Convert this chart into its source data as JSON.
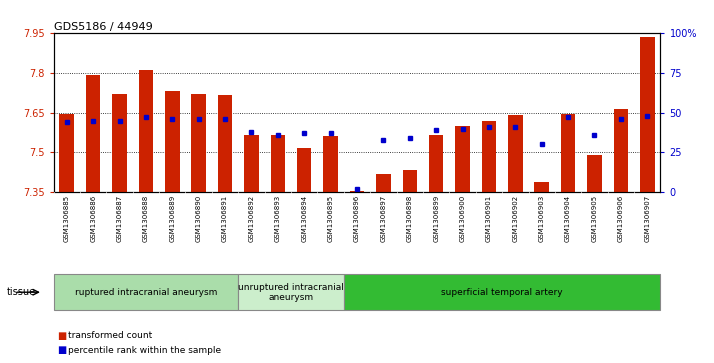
{
  "title": "GDS5186 / 44949",
  "samples": [
    "GSM1306885",
    "GSM1306886",
    "GSM1306887",
    "GSM1306888",
    "GSM1306889",
    "GSM1306890",
    "GSM1306891",
    "GSM1306892",
    "GSM1306893",
    "GSM1306894",
    "GSM1306895",
    "GSM1306896",
    "GSM1306897",
    "GSM1306898",
    "GSM1306899",
    "GSM1306900",
    "GSM1306901",
    "GSM1306902",
    "GSM1306903",
    "GSM1306904",
    "GSM1306905",
    "GSM1306906",
    "GSM1306907"
  ],
  "bar_values": [
    7.645,
    7.79,
    7.72,
    7.81,
    7.73,
    7.72,
    7.715,
    7.565,
    7.565,
    7.515,
    7.56,
    7.355,
    7.42,
    7.435,
    7.565,
    7.6,
    7.62,
    7.64,
    7.39,
    7.645,
    7.49,
    7.665,
    7.935
  ],
  "percentile_values": [
    44,
    45,
    45,
    47,
    46,
    46,
    46,
    38,
    36,
    37,
    37,
    2,
    33,
    34,
    39,
    40,
    41,
    41,
    30,
    47,
    36,
    46,
    48
  ],
  "ymin": 7.35,
  "ymax": 7.95,
  "yticks": [
    7.35,
    7.5,
    7.65,
    7.8,
    7.95
  ],
  "ytick_labels": [
    "7.35",
    "7.5",
    "7.65",
    "7.8",
    "7.95"
  ],
  "bar_color": "#cc2200",
  "dot_color": "#0000cc",
  "background_color": "#ffffff",
  "group_colors": [
    "#aaddaa",
    "#cceecc",
    "#33bb33"
  ],
  "groups": [
    {
      "label": "ruptured intracranial aneurysm",
      "start": 0,
      "end": 7
    },
    {
      "label": "unruptured intracranial\naneurysm",
      "start": 7,
      "end": 11
    },
    {
      "label": "superficial temporal artery",
      "start": 11,
      "end": 23
    }
  ],
  "tissue_label": "tissue",
  "grid_yticks": [
    7.5,
    7.65,
    7.8
  ],
  "right_yticks": [
    0,
    25,
    50,
    75,
    100
  ],
  "right_ytick_labels": [
    "0",
    "25",
    "50",
    "75",
    "100%"
  ]
}
